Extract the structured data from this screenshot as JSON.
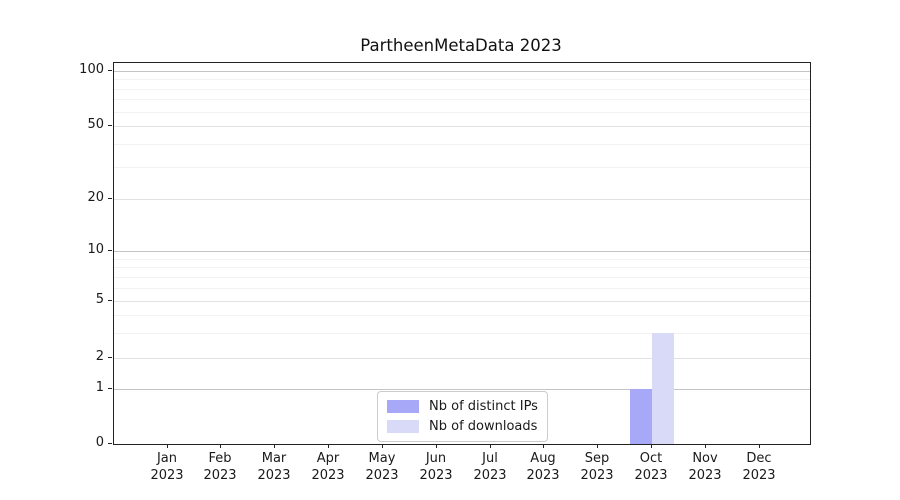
{
  "title": "PartheenMetaData 2023",
  "chart_data": {
    "type": "bar",
    "title": "PartheenMetaData 2023",
    "categories": [
      "Jan 2023",
      "Feb 2023",
      "Mar 2023",
      "Apr 2023",
      "May 2023",
      "Jun 2023",
      "Jul 2023",
      "Aug 2023",
      "Sep 2023",
      "Oct 2023",
      "Nov 2023",
      "Dec 2023"
    ],
    "series": [
      {
        "name": "Nb of distinct IPs",
        "color": "#a8a8f8",
        "values": [
          0,
          0,
          0,
          0,
          0,
          0,
          0,
          0,
          0,
          1,
          0,
          0
        ]
      },
      {
        "name": "Nb of downloads",
        "color": "#d9d9f8",
        "values": [
          0,
          0,
          0,
          0,
          0,
          0,
          0,
          0,
          0,
          3,
          0,
          0
        ]
      }
    ],
    "yscale": "symlog",
    "ylim": [
      0,
      110
    ],
    "yticks": [
      0,
      1,
      2,
      5,
      10,
      20,
      50,
      100
    ],
    "yminor": [
      3,
      4,
      6,
      7,
      8,
      9,
      30,
      40,
      60,
      70,
      80,
      90
    ],
    "grid": true,
    "legend": {
      "position": "lower center",
      "labels": [
        "Nb of distinct IPs",
        "Nb of downloads"
      ]
    },
    "y_scale_anchors": [
      [
        0,
        1.0
      ],
      [
        1,
        0.8556
      ],
      [
        2,
        0.7735
      ],
      [
        5,
        0.6247
      ],
      [
        10,
        0.4934
      ],
      [
        20,
        0.3561
      ],
      [
        50,
        0.1654
      ],
      [
        100,
        0.021
      ]
    ]
  },
  "colors": {
    "bar_ips": "#a8a8f8",
    "bar_downloads": "#d9d9f8",
    "grid_major": "#c4c4c4",
    "grid_sub": "#e2e2e2",
    "grid_minor": "#f2f2f2",
    "spine": "#222222",
    "text": "#1a1a1a",
    "legend_border": "#cccccc"
  }
}
